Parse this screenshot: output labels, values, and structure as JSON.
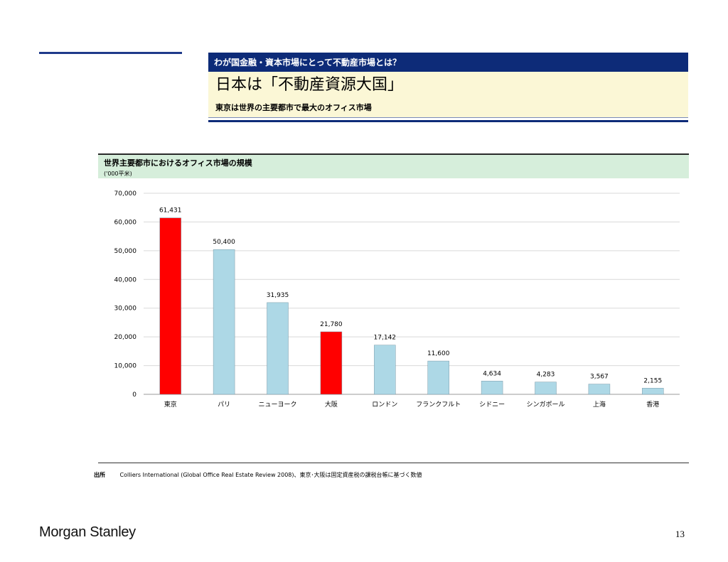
{
  "header": {
    "section": "わが国金融・資本市場にとって不動産市場とは？",
    "title": "日本は「不動産資源大国」",
    "subtitle": "東京は世界の主要都市で最大のオフィス市場"
  },
  "chart_header": {
    "title": "世界主要都市におけるオフィス市場の規模",
    "unit": "('000平米)"
  },
  "chart_data": {
    "type": "bar",
    "categories": [
      "東京",
      "パリ",
      "ニューヨーク",
      "大阪",
      "ロンドン",
      "フランクフルト",
      "シドニー",
      "シンガポール",
      "上海",
      "香港"
    ],
    "values": [
      61431,
      50400,
      31935,
      21780,
      17142,
      11600,
      4634,
      4283,
      3567,
      2155
    ],
    "value_labels": [
      "61,431",
      "50,400",
      "31,935",
      "21,780",
      "17,142",
      "11,600",
      "4,634",
      "4,283",
      "3,567",
      "2,155"
    ],
    "highlight": [
      true,
      false,
      false,
      true,
      false,
      false,
      false,
      false,
      false,
      false
    ],
    "ylim": [
      0,
      70000
    ],
    "yticks": [
      0,
      10000,
      20000,
      30000,
      40000,
      50000,
      60000,
      70000
    ],
    "ytick_labels": [
      "0",
      "10,000",
      "20,000",
      "30,000",
      "40,000",
      "50,000",
      "60,000",
      "70,000"
    ],
    "grid": true,
    "colors": {
      "highlight": "#ff0000",
      "default": "#add8e6",
      "grid": "#d9d9d9"
    }
  },
  "source": {
    "label": "出所",
    "text": "Colliers International (Global Office Real Estate Review 2008)、東京･大阪は固定資産税の課税台帳に基づく数値"
  },
  "footer": {
    "logo": "Morgan Stanley",
    "page_number": "13"
  }
}
